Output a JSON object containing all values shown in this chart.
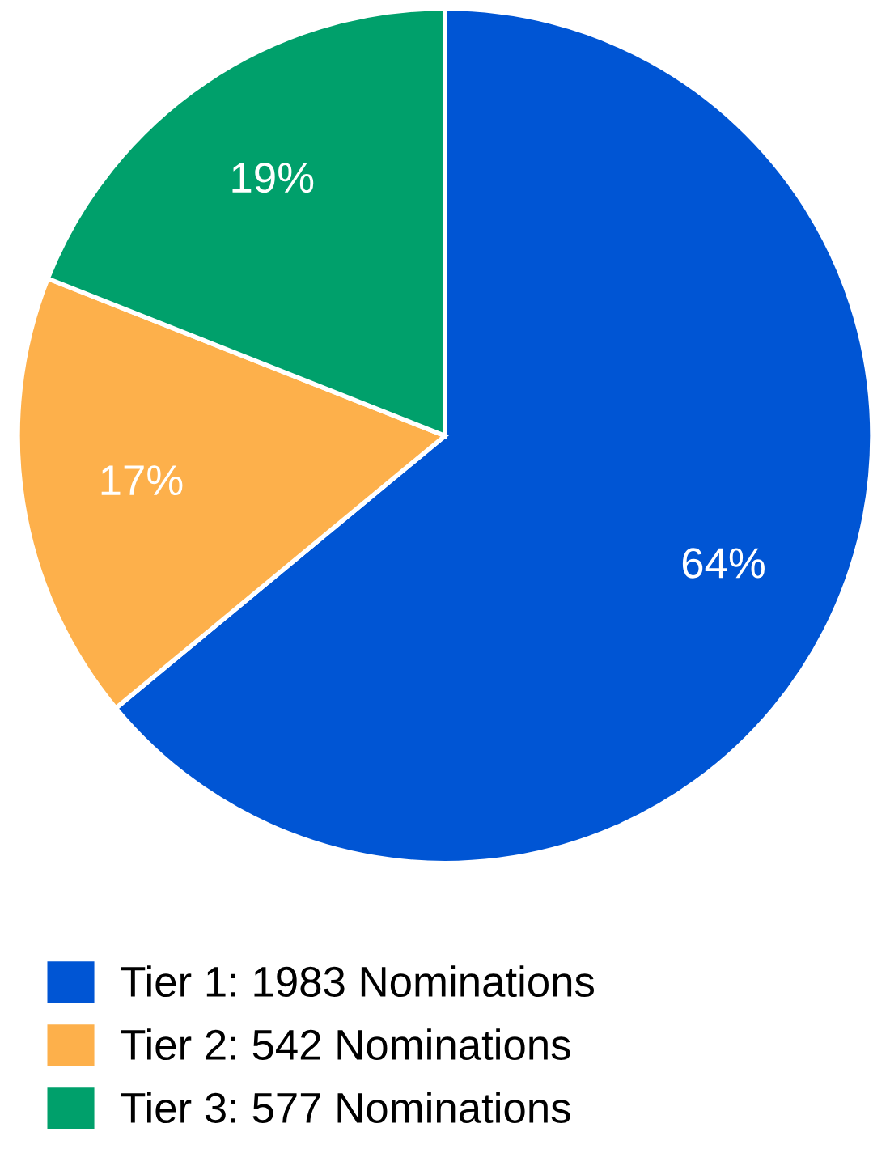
{
  "chart_data": {
    "type": "pie",
    "categories": [
      "Tier 1: 1983 Nominations",
      "Tier 2: 542 Nominations",
      "Tier 3: 577 Nominations"
    ],
    "values": [
      64,
      17,
      19
    ],
    "value_labels": [
      "64%",
      "17%",
      "19%"
    ],
    "colors": [
      "#0055d4",
      "#fdb04b",
      "#00a06b"
    ],
    "legend": "bottom"
  }
}
